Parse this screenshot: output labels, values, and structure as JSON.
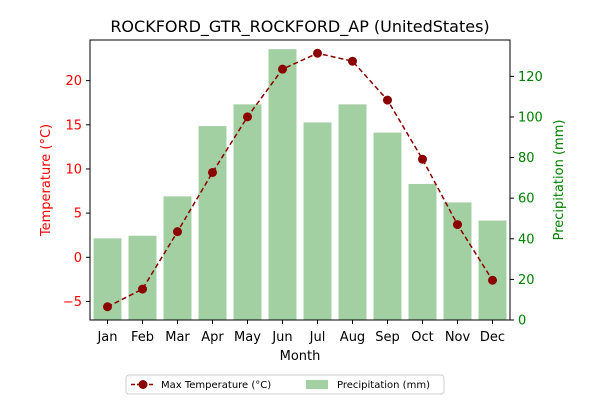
{
  "chart_data": {
    "type": "bar",
    "title": "ROCKFORD_GTR_ROCKFORD_AP (UnitedStates)",
    "xlabel": "Month",
    "ylabel_left": "Temperature (°C)",
    "ylabel_right": "Precipitation (mm)",
    "categories": [
      "Jan",
      "Feb",
      "Mar",
      "Apr",
      "May",
      "Jun",
      "Jul",
      "Aug",
      "Sep",
      "Oct",
      "Nov",
      "Dec"
    ],
    "series": [
      {
        "name": "Max Temperature (°C)",
        "type": "line",
        "axis": "left",
        "color": "#8b0000",
        "values": [
          -5.6,
          -3.6,
          2.9,
          9.6,
          15.9,
          21.3,
          23.1,
          22.2,
          17.8,
          11.1,
          3.7,
          -2.6
        ]
      },
      {
        "name": "Precipitation (mm)",
        "type": "bar",
        "axis": "right",
        "color": "#a3d0a3",
        "values": [
          40.2,
          41.5,
          60.9,
          95.5,
          106.2,
          133.4,
          97.3,
          106.2,
          92.3,
          67.0,
          57.9,
          49.0
        ]
      }
    ],
    "ylim_left": [
      -7.1,
      24.6
    ],
    "yticks_left": [
      "−5",
      "0",
      "5",
      "10",
      "15",
      "20"
    ],
    "ylim_right": [
      0,
      137.9
    ],
    "yticks_right": [
      "0",
      "20",
      "40",
      "60",
      "80",
      "100",
      "120"
    ],
    "left_axis_color": "#ff0000",
    "right_axis_color": "#008000",
    "grid": false,
    "legend_position": "bottom-center"
  }
}
